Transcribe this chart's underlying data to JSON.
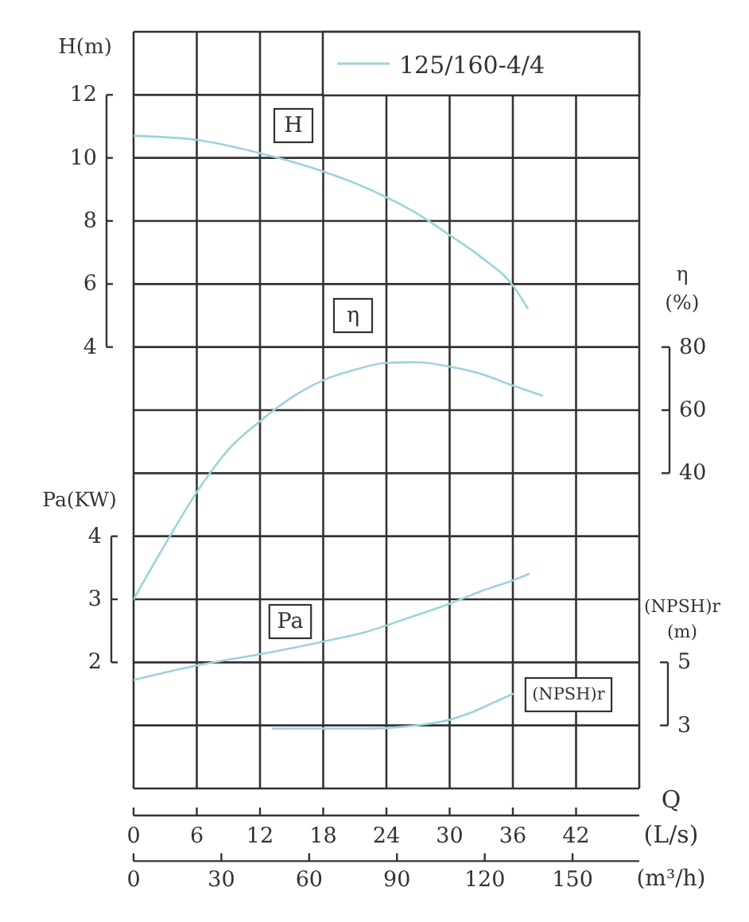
{
  "chart_data": [
    {
      "type": "line",
      "xlabel": "Q (L/s)",
      "x2label": "(m³/h)",
      "ylabel": "H(m)",
      "y2label": "η (%)",
      "y3label": "Pa(KW)",
      "annotations": [
        "125/160-4/4"
      ],
      "grid": true,
      "marker": "none",
      "line_style": "solid",
      "xlim": [
        0,
        48
      ],
      "xticks": [
        0,
        6,
        12,
        18,
        24,
        30,
        36,
        42
      ],
      "x2lim": [
        0,
        172.8
      ],
      "x2ticks": [
        0,
        30,
        60,
        90,
        120,
        150
      ],
      "ylim": [
        -10,
        14
      ],
      "yticks": [
        4,
        6,
        8,
        10,
        12
      ],
      "y2lim": [
        -60,
        180
      ],
      "y2ticks": [
        40,
        60,
        80
      ],
      "y3lim": [
        0,
        12
      ],
      "y3ticks": [
        2,
        3,
        4
      ],
      "series": [
        {
          "name": "H",
          "color": "#9dd3da",
          "x": [
            0,
            6,
            12,
            18,
            21,
            24,
            27,
            30,
            33,
            36,
            37.4
          ],
          "values": [
            10.7,
            10.57,
            10.15,
            9.57,
            9.2,
            8.75,
            8.22,
            7.55,
            6.85,
            5.95,
            5.23
          ]
        },
        {
          "name": "η",
          "color": "#9dd3da",
          "axis": "y2",
          "x": [
            0,
            3,
            6,
            9,
            12,
            15,
            18,
            21,
            24,
            27,
            30,
            33,
            36,
            38.8
          ],
          "values": [
            0,
            17.5,
            34,
            47.5,
            56.5,
            64,
            69.5,
            72.8,
            75,
            75.2,
            73.8,
            71.5,
            67.8,
            64.6
          ]
        },
        {
          "name": "Pa",
          "color": "#9dd3da",
          "axis": "y3",
          "x": [
            0,
            6,
            12,
            18,
            22,
            26,
            30,
            33,
            36,
            37.5
          ],
          "values": [
            1.72,
            1.95,
            2.13,
            2.33,
            2.48,
            2.7,
            2.93,
            3.13,
            3.3,
            3.4
          ]
        }
      ]
    },
    {
      "type": "line",
      "ylabel": "(NPSH)r (m)",
      "tick_labels": "y",
      "marker": "none",
      "line_style": "solid",
      "xlim": [
        0,
        48
      ],
      "ylim": [
        1,
        25
      ],
      "yticks": [
        3,
        5
      ],
      "series": [
        {
          "name": "(NPSH)r",
          "color": "#9dd3da",
          "x": [
            13.2,
            18,
            22,
            26,
            30,
            32,
            34,
            36
          ],
          "values": [
            2.9,
            2.9,
            2.9,
            2.97,
            3.18,
            3.4,
            3.7,
            4.0
          ]
        }
      ]
    }
  ]
}
